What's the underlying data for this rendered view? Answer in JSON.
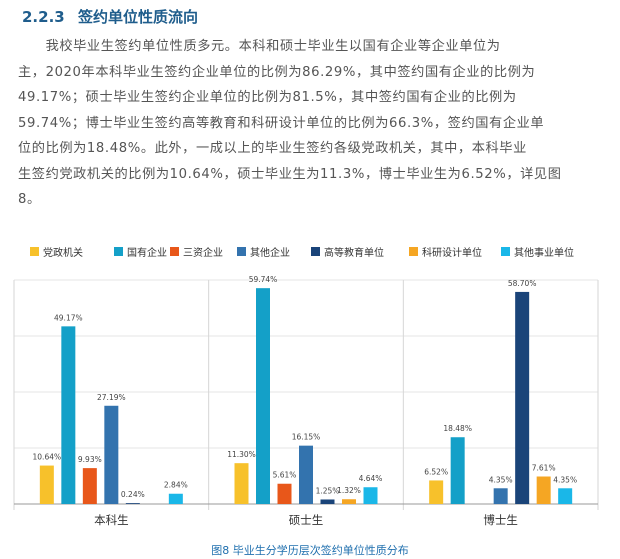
{
  "section": {
    "number": "2.2.3",
    "title": "签约单位性质流向"
  },
  "paragraph_lines": [
    "　　我校毕业生签约单位性质多元。本科和硕士毕业生以国有企业等企业单位为",
    "主，2020年本科毕业生签约企业单位的比例为86.29%，其中签约国有企业的比例为",
    "49.17%；硕士毕业生签约企业单位的比例为81.5%，其中签约国有企业的比例为",
    "59.74%；博士毕业生签约高等教育和科研设计单位的比例为66.3%，签约国有企业单",
    "位的比例为18.48%。此外，一成以上的毕业生签约各级党政机关，其中，本科毕业",
    "生签约党政机关的比例为10.64%，硕士毕业生为11.3%，博士毕业生为6.52%，详见图",
    "8。"
  ],
  "caption": "图8 毕业生分学历层次签约单位性质分布",
  "chart_data": {
    "type": "bar",
    "title": "",
    "xlabel": "",
    "ylabel": "",
    "ylim": [
      0,
      62
    ],
    "grid": true,
    "legend_position": "top",
    "categories": [
      "本科生",
      "硕士生",
      "博士生"
    ],
    "series": [
      {
        "name": "党政机关",
        "color": "#f7c12b",
        "values": [
          10.64,
          11.3,
          6.52
        ],
        "labels": [
          "10.64%",
          "11.30%",
          "6.52%"
        ]
      },
      {
        "name": "国有企业",
        "color": "#14a0c8",
        "values": [
          49.17,
          59.74,
          18.48
        ],
        "labels": [
          "49.17%",
          "59.74%",
          "18.48%"
        ]
      },
      {
        "name": "三资企业",
        "color": "#e8571a",
        "values": [
          9.93,
          5.61,
          0
        ],
        "labels": [
          "9.93%",
          "5.61%",
          ""
        ]
      },
      {
        "name": "其他企业",
        "color": "#3373ae",
        "values": [
          27.19,
          16.15,
          4.35
        ],
        "labels": [
          "27.19%",
          "16.15%",
          "4.35%"
        ]
      },
      {
        "name": "高等教育单位",
        "color": "#1a4479",
        "values": [
          0.24,
          1.25,
          58.7
        ],
        "labels": [
          "0.24%",
          "1.25%",
          "58.70%"
        ]
      },
      {
        "name": "科研设计单位",
        "color": "#f5a623",
        "values": [
          0,
          1.32,
          7.61
        ],
        "labels": [
          "",
          "1.32%",
          "7.61%"
        ]
      },
      {
        "name": "其他事业单位",
        "color": "#1ab7e8",
        "values": [
          2.84,
          4.64,
          4.35
        ],
        "labels": [
          "2.84%",
          "4.64%",
          "4.35%"
        ]
      }
    ]
  }
}
